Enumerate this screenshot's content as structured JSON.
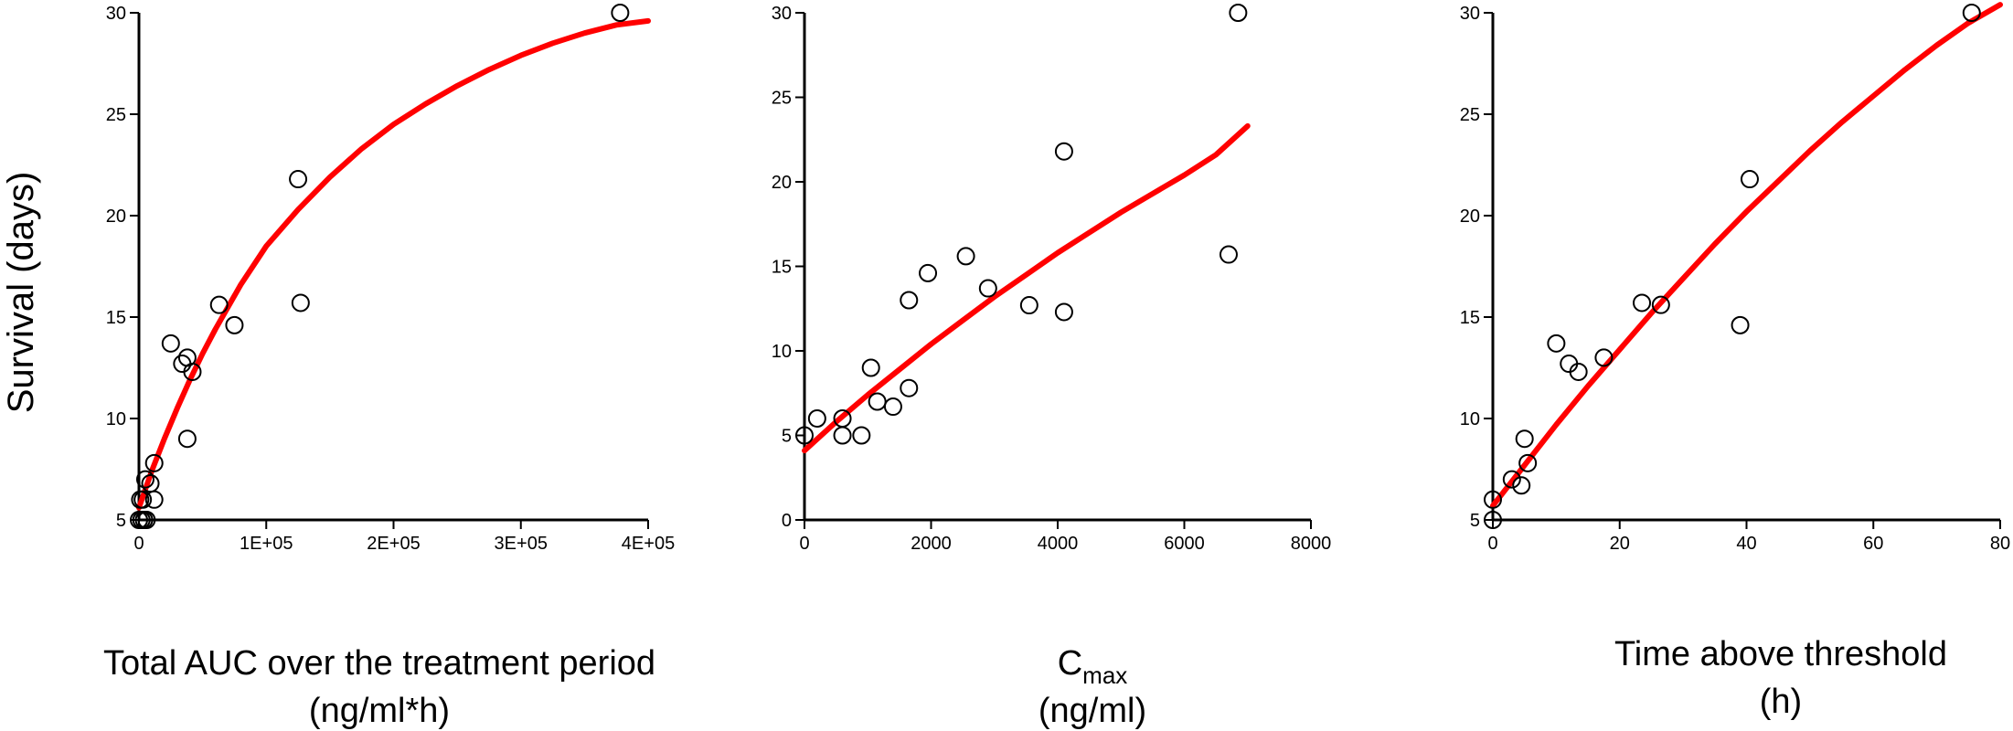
{
  "ylabel": "Survival (days)",
  "chart_data": [
    {
      "type": "scatter",
      "xlabel": [
        "Total AUC over the treatment period",
        "(ng/ml*h)"
      ],
      "xlim": [
        0,
        400000
      ],
      "ylim": [
        5,
        30
      ],
      "xticks": [
        0,
        100000,
        200000,
        300000,
        400000
      ],
      "xtick_labels": [
        "0",
        "1E+05",
        "2E+05",
        "3E+05",
        "4E+05"
      ],
      "yticks": [
        5,
        10,
        15,
        20,
        25,
        30
      ],
      "ytick_labels": [
        "5",
        "10",
        "15",
        "20",
        "25",
        "30"
      ],
      "points": [
        [
          0,
          5
        ],
        [
          2000,
          5
        ],
        [
          4000,
          5
        ],
        [
          6000,
          5
        ],
        [
          1000,
          6
        ],
        [
          3000,
          6
        ],
        [
          5000,
          7
        ],
        [
          9000,
          6.8
        ],
        [
          12000,
          6
        ],
        [
          12000,
          7.8
        ],
        [
          25000,
          13.7
        ],
        [
          34000,
          12.7
        ],
        [
          38000,
          9
        ],
        [
          38000,
          13
        ],
        [
          42000,
          12.3
        ],
        [
          63000,
          15.6
        ],
        [
          75000,
          14.6
        ],
        [
          125000,
          21.8
        ],
        [
          127000,
          15.7
        ],
        [
          378000,
          30
        ]
      ],
      "fit": {
        "color": "#ff0000",
        "x": [
          0,
          10000,
          20000,
          30000,
          40000,
          50000,
          60000,
          80000,
          100000,
          125000,
          150000,
          175000,
          200000,
          225000,
          250000,
          275000,
          300000,
          325000,
          350000,
          375000,
          400000
        ],
        "y": [
          5.6,
          7.4,
          9.0,
          10.5,
          11.9,
          13.2,
          14.4,
          16.6,
          18.5,
          20.3,
          21.9,
          23.3,
          24.5,
          25.5,
          26.4,
          27.2,
          27.9,
          28.5,
          29.0,
          29.4,
          29.6
        ]
      }
    },
    {
      "type": "scatter",
      "xlabel": [
        "C",
        "max",
        "(ng/ml)"
      ],
      "xlim": [
        0,
        8000
      ],
      "ylim": [
        0,
        30
      ],
      "xticks": [
        0,
        2000,
        4000,
        6000,
        8000
      ],
      "xtick_labels": [
        "0",
        "2000",
        "4000",
        "6000",
        "8000"
      ],
      "yticks": [
        0,
        5,
        10,
        15,
        20,
        25,
        30
      ],
      "ytick_labels": [
        "0",
        "5",
        "10",
        "15",
        "20",
        "25",
        "30"
      ],
      "points": [
        [
          0,
          5
        ],
        [
          200,
          6
        ],
        [
          600,
          6
        ],
        [
          600,
          5
        ],
        [
          900,
          5
        ],
        [
          1050,
          9
        ],
        [
          1150,
          7
        ],
        [
          1400,
          6.7
        ],
        [
          1650,
          13
        ],
        [
          1650,
          7.8
        ],
        [
          1950,
          14.6
        ],
        [
          2550,
          15.6
        ],
        [
          2900,
          13.7
        ],
        [
          3550,
          12.7
        ],
        [
          4100,
          12.3
        ],
        [
          4100,
          21.8
        ],
        [
          6700,
          15.7
        ],
        [
          6850,
          30
        ]
      ],
      "fit": {
        "color": "#ff0000",
        "x": [
          0,
          500,
          1000,
          1500,
          2000,
          2500,
          3000,
          3500,
          4000,
          4500,
          5000,
          5500,
          6000,
          6500,
          7000
        ],
        "y": [
          4.1,
          5.8,
          7.4,
          8.9,
          10.4,
          11.8,
          13.2,
          14.5,
          15.8,
          17.0,
          18.2,
          19.3,
          20.4,
          21.6,
          23.3
        ]
      }
    },
    {
      "type": "scatter",
      "xlabel": [
        "Time above threshold",
        "(h)"
      ],
      "xlim": [
        0,
        80
      ],
      "ylim": [
        5,
        30
      ],
      "xticks": [
        0,
        20,
        40,
        60,
        80
      ],
      "xtick_labels": [
        "0",
        "20",
        "40",
        "60",
        "80"
      ],
      "yticks": [
        5,
        10,
        15,
        20,
        25,
        30
      ],
      "ytick_labels": [
        "5",
        "10",
        "15",
        "20",
        "25",
        "30"
      ],
      "points": [
        [
          0,
          5
        ],
        [
          0,
          6
        ],
        [
          3,
          7
        ],
        [
          4.5,
          6.7
        ],
        [
          5,
          9
        ],
        [
          5.5,
          7.8
        ],
        [
          10,
          13.7
        ],
        [
          12,
          12.7
        ],
        [
          13.5,
          12.3
        ],
        [
          17.5,
          13
        ],
        [
          23.5,
          15.7
        ],
        [
          26.5,
          15.6
        ],
        [
          39,
          14.6
        ],
        [
          40.5,
          21.8
        ],
        [
          75.5,
          30
        ]
      ],
      "fit": {
        "color": "#ff0000",
        "x": [
          0,
          5,
          10,
          15,
          20,
          25,
          30,
          35,
          40,
          45,
          50,
          55,
          60,
          65,
          70,
          75,
          80
        ],
        "y": [
          5.7,
          7.7,
          9.7,
          11.6,
          13.4,
          15.2,
          16.9,
          18.6,
          20.2,
          21.7,
          23.2,
          24.6,
          25.9,
          27.2,
          28.4,
          29.5,
          30.4
        ]
      }
    }
  ]
}
